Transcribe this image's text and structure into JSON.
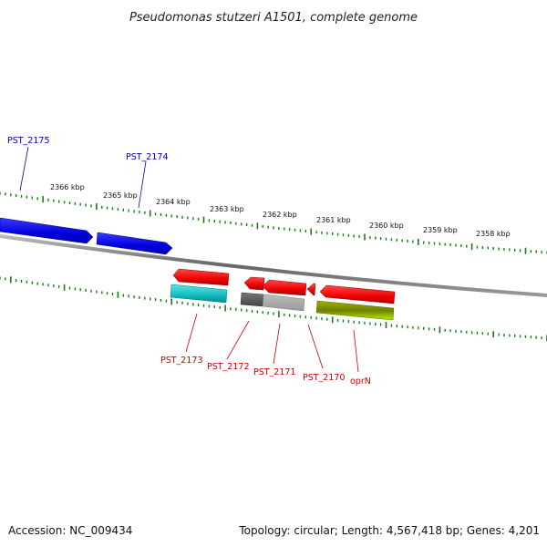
{
  "title": "Pseudomonas stutzeri A1501, complete genome",
  "footer": {
    "accession": "Accession: NC_009434",
    "topology": "Topology: circular; Length: 4,567,418 bp; Genes: 4,201"
  },
  "colors": {
    "blue_gene": "#0000ee",
    "red_gene": "#ee0000",
    "cyan_gene": "#11cccc",
    "gray_gene": "#888888",
    "olive_gene": "#8aa000",
    "tick": "#1a7a1a",
    "blue_label": "#0000aa",
    "red_label": "#cc0000"
  },
  "scale_labels": [
    "2366 kbp",
    "2365 kbp",
    "2364 kbp",
    "2363 kbp",
    "2362 kbp",
    "2361 kbp",
    "2360 kbp",
    "2359 kbp",
    "2358 kbp"
  ],
  "top_labels": [
    "PST_2175",
    "PST_2174"
  ],
  "bottom_labels": [
    "PST_2173",
    "PST_2172",
    "PST_2171",
    "PST_2170",
    "oprN"
  ]
}
